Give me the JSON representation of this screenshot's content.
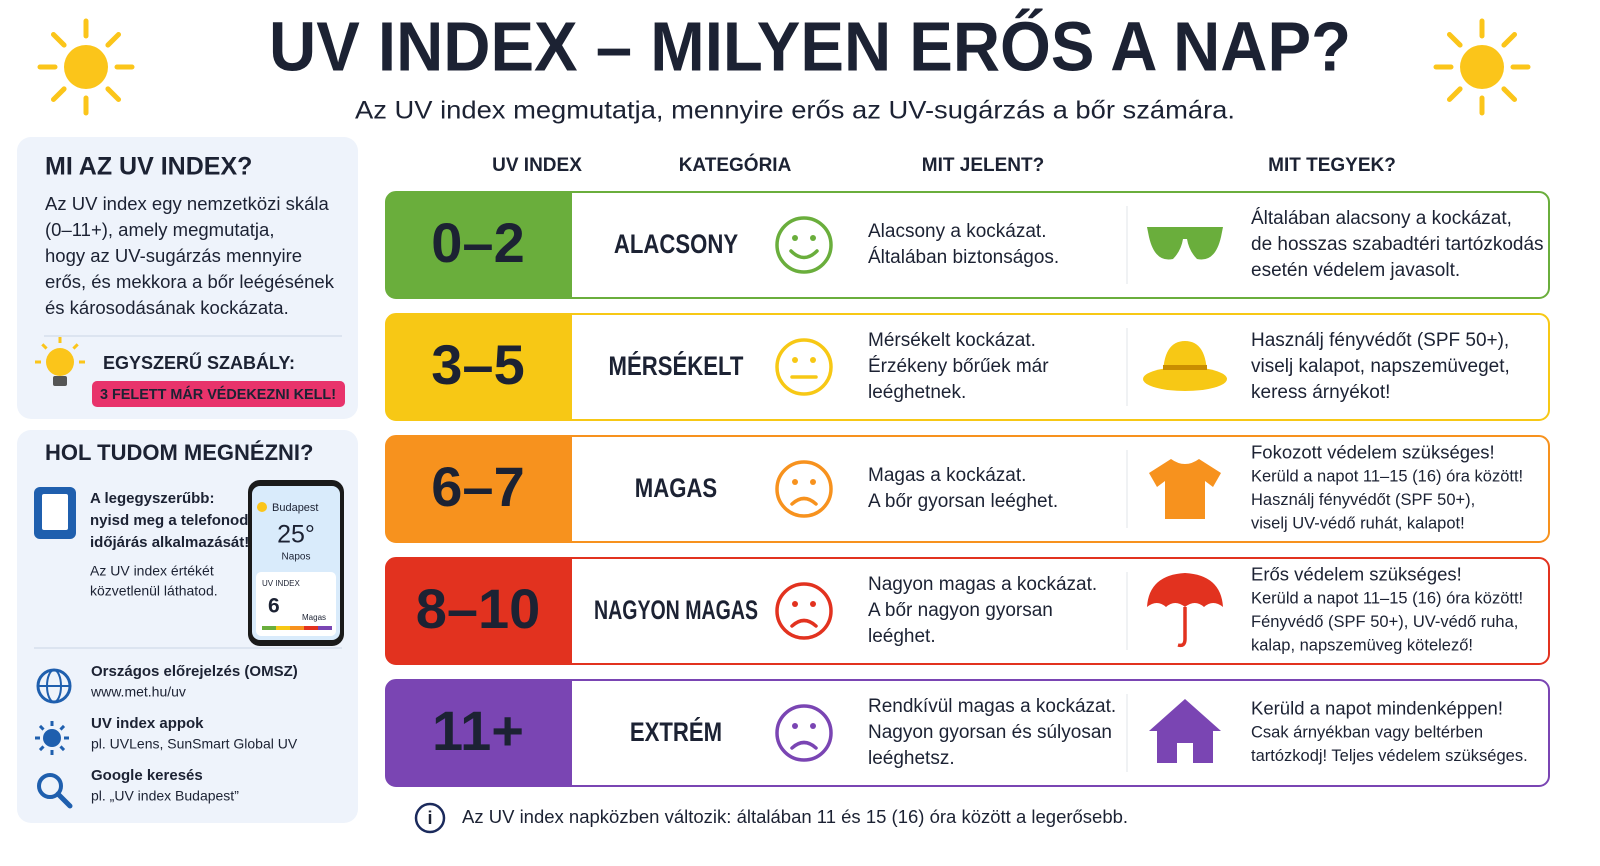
{
  "header": {
    "title": "UV INDEX – MILYEN ERŐS A NAP?",
    "subtitle": "Az UV index megmutatja, mennyire erős az UV-sugárzás a bőr számára."
  },
  "sidebar": {
    "about": {
      "title": "MI AZ UV INDEX?",
      "lines": [
        "Az UV index egy nemzetközi skála",
        "(0–11+), amely megmutatja,",
        "hogy az UV-sugárzás mennyire",
        "erős, és mekkora a bőr leégésének",
        "és károsodásának kockázata."
      ],
      "rule_title": "EGYSZERŰ SZABÁLY:",
      "rule": "3 FELETT MÁR VÉDEKEZNI KELL!"
    },
    "where": {
      "title": "HOL TUDOM MEGNÉZNI?",
      "tip_bold": [
        "A legegyszerűbb:",
        "nyisd meg a telefonod",
        "időjárás alkalmazását!"
      ],
      "tip": [
        "Az UV index értékét",
        "közvetlenül láthatod."
      ],
      "phone": {
        "city": "Budapest",
        "temp": "25°",
        "condition": "Napos",
        "uv_label": "UV INDEX",
        "uv_value": "6",
        "uv_level": "Magas"
      },
      "sources": [
        {
          "title": "Országos előrejelzés (OMSZ)",
          "text": "www.met.hu/uv"
        },
        {
          "title": "UV index appok",
          "text": "pl. UVLens, SunSmart Global UV"
        },
        {
          "title": "Google keresés",
          "text": "pl. „UV index Budapest”"
        }
      ]
    }
  },
  "table": {
    "columns": [
      "UV INDEX",
      "KATEGÓRIA",
      "MIT JELENT?",
      "MIT TEGYEK?"
    ],
    "rows": [
      {
        "range": "0–2",
        "category": "ALACSONY",
        "color": "#6aae3c",
        "meaning": [
          "Alacsony a kockázat.",
          "Általában biztonságos."
        ],
        "action": [
          "Általában alacsony a kockázat,",
          "de hosszas szabadtéri tartózkodás",
          "esetén védelem javasolt."
        ]
      },
      {
        "range": "3–5",
        "category": "MÉRSÉKELT",
        "color": "#f7c815",
        "meaning": [
          "Mérsékelt kockázat.",
          "Érzékeny bőrűek már",
          "leéghetnek."
        ],
        "action": [
          "Használj fényvédőt (SPF 50+),",
          "viselj kalapot, napszemüveget,",
          "keress árnyékot!"
        ]
      },
      {
        "range": "6–7",
        "category": "MAGAS",
        "color": "#f7921e",
        "meaning": [
          "Magas a kockázat.",
          "A bőr gyorsan leéghet."
        ],
        "action_title": "Fokozott védelem szükséges!",
        "action": [
          "Kerüld a napot 11–15 (16) óra között!",
          "Használj fényvédőt (SPF 50+),",
          "viselj UV-védő ruhát, kalapot!"
        ]
      },
      {
        "range": "8–10",
        "category": "NAGYON MAGAS",
        "color": "#e2321f",
        "meaning": [
          "Nagyon magas a kockázat.",
          "A bőr nagyon gyorsan",
          "leéghet."
        ],
        "action_title": "Erős védelem szükséges!",
        "action": [
          "Kerüld a napot 11–15 (16) óra között!",
          "Fényvédő (SPF 50+), UV-védő ruha,",
          "kalap, napszemüveg kötelező!"
        ]
      },
      {
        "range": "11+",
        "category": "EXTRÉM",
        "color": "#7a45b3",
        "meaning": [
          "Rendkívül magas a kockázat.",
          "Nagyon gyorsan és súlyosan",
          "leéghetsz."
        ],
        "action_title": "Kerüld a napot mindenképpen!",
        "action": [
          "Csak árnyékban vagy beltérben",
          "tartózkodj! Teljes védelem szükséges."
        ]
      }
    ]
  },
  "footnote": "Az UV index napközben változik: általában 11 és 15 (16) óra között a legerősebb."
}
